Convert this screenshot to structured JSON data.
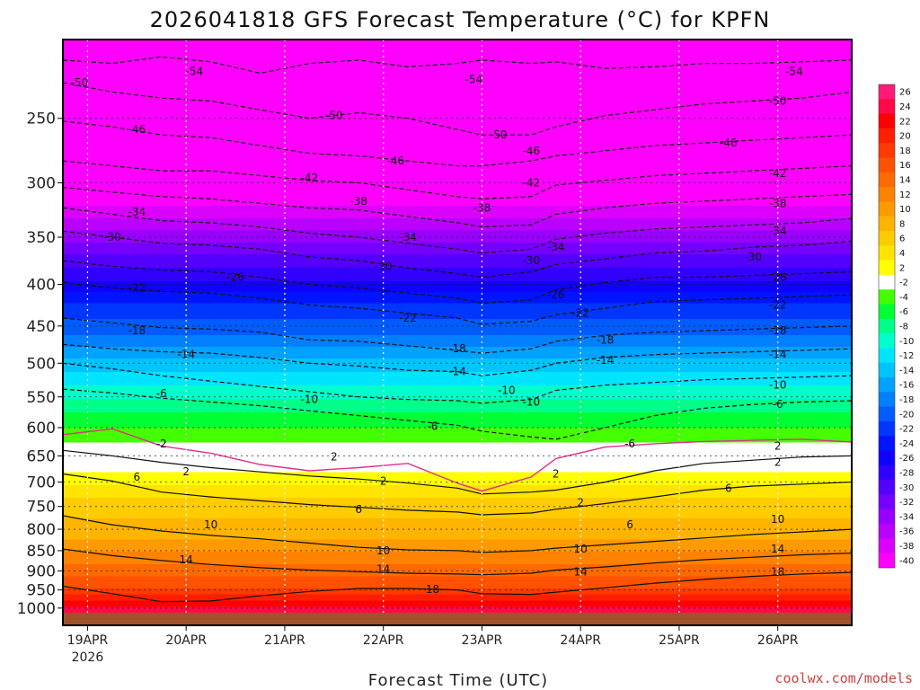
{
  "chart_data": {
    "type": "heatmap",
    "title": "2026041818 GFS Forecast Temperature (°C) for KPFN",
    "xlabel": "Forecast Time (UTC)",
    "ylabel": "",
    "credit": "coolwx.com/models",
    "y_axis": {
      "unit": "hPa",
      "scale": "log",
      "inverted": true,
      "ylim": [
        1050,
        200
      ],
      "ticks": [
        250,
        300,
        350,
        400,
        450,
        500,
        550,
        600,
        650,
        700,
        750,
        800,
        850,
        900,
        950,
        1000
      ]
    },
    "x_axis": {
      "xlim": [
        "2026-04-18T18",
        "2026-04-26T18"
      ],
      "ticks": [
        {
          "t": "2026-04-19T00",
          "label": "19APR",
          "sub": "2026"
        },
        {
          "t": "2026-04-20T00",
          "label": "20APR",
          "sub": ""
        },
        {
          "t": "2026-04-21T00",
          "label": "21APR",
          "sub": ""
        },
        {
          "t": "2026-04-22T00",
          "label": "22APR",
          "sub": ""
        },
        {
          "t": "2026-04-23T00",
          "label": "23APR",
          "sub": ""
        },
        {
          "t": "2026-04-24T00",
          "label": "24APR",
          "sub": ""
        },
        {
          "t": "2026-04-25T00",
          "label": "25APR",
          "sub": ""
        },
        {
          "t": "2026-04-26T00",
          "label": "26APR",
          "sub": ""
        }
      ]
    },
    "grid": true,
    "colorbar": {
      "labels": [
        26,
        24,
        22,
        20,
        18,
        16,
        14,
        12,
        10,
        8,
        6,
        4,
        2,
        -2,
        -4,
        -6,
        -8,
        -10,
        -12,
        -14,
        -16,
        -18,
        -20,
        -22,
        -24,
        -26,
        -28,
        -30,
        -32,
        -34,
        -36,
        -38,
        -40
      ],
      "colors": [
        "#ff1a7a",
        "#ff0a46",
        "#ff0000",
        "#ff1f00",
        "#ff3a00",
        "#ff5200",
        "#ff6a00",
        "#ff8200",
        "#ff9a00",
        "#ffb400",
        "#ffcc00",
        "#ffe400",
        "#ffff00",
        "#ffffff",
        "#44ff00",
        "#00ff33",
        "#00ff88",
        "#00ffcc",
        "#00e5ff",
        "#00c4ff",
        "#00a2ff",
        "#0080ff",
        "#005cff",
        "#0036ff",
        "#0014ff",
        "#1000ff",
        "#3200ff",
        "#5400ff",
        "#7600ff",
        "#9800ff",
        "#ba00ff",
        "#dc00ff",
        "#ff00ff"
      ]
    },
    "ground_color": "#a0522d",
    "isotherm_levels": [
      -54,
      -50,
      -46,
      -42,
      -38,
      -34,
      -30,
      -26,
      -22,
      -18,
      -14,
      -10,
      -6,
      2,
      6,
      10,
      14,
      18
    ],
    "freezing_line_color": "#e0308a",
    "freezing_level_hpa": [
      {
        "t": "2026-04-18T18",
        "p": 612
      },
      {
        "t": "2026-04-19T06",
        "p": 602
      },
      {
        "t": "2026-04-19T18",
        "p": 632
      },
      {
        "t": "2026-04-20T06",
        "p": 645
      },
      {
        "t": "2026-04-20T18",
        "p": 666
      },
      {
        "t": "2026-04-21T06",
        "p": 678
      },
      {
        "t": "2026-04-21T18",
        "p": 672
      },
      {
        "t": "2026-04-22T06",
        "p": 664
      },
      {
        "t": "2026-04-22T18",
        "p": 702
      },
      {
        "t": "2026-04-23T00",
        "p": 718
      },
      {
        "t": "2026-04-23T12",
        "p": 690
      },
      {
        "t": "2026-04-23T18",
        "p": 655
      },
      {
        "t": "2026-04-24T06",
        "p": 634
      },
      {
        "t": "2026-04-24T18",
        "p": 628
      },
      {
        "t": "2026-04-25T06",
        "p": 624
      },
      {
        "t": "2026-04-25T18",
        "p": 622
      },
      {
        "t": "2026-04-26T06",
        "p": 620
      },
      {
        "t": "2026-04-26T18",
        "p": 625
      }
    ],
    "isotherm_labels": [
      {
        "t": "2026-04-18T22",
        "p": 226,
        "text": "-50"
      },
      {
        "t": "2026-04-20T02",
        "p": 219,
        "text": "-54"
      },
      {
        "t": "2026-04-22T22",
        "p": 224,
        "text": "-54"
      },
      {
        "t": "2026-04-26T04",
        "p": 219,
        "text": "-54"
      },
      {
        "t": "2026-04-21T12",
        "p": 248,
        "text": "-50"
      },
      {
        "t": "2026-04-23T04",
        "p": 262,
        "text": "-50"
      },
      {
        "t": "2026-04-26T00",
        "p": 238,
        "text": "-50"
      },
      {
        "t": "2026-04-19T12",
        "p": 258,
        "text": "-46"
      },
      {
        "t": "2026-04-22T03",
        "p": 282,
        "text": "-46"
      },
      {
        "t": "2026-04-23T12",
        "p": 274,
        "text": "-46"
      },
      {
        "t": "2026-04-25T12",
        "p": 268,
        "text": "-46"
      },
      {
        "t": "2026-04-21T06",
        "p": 296,
        "text": "-42"
      },
      {
        "t": "2026-04-23T12",
        "p": 300,
        "text": "-42"
      },
      {
        "t": "2026-04-26T00",
        "p": 292,
        "text": "-42"
      },
      {
        "t": "2026-04-21T18",
        "p": 316,
        "text": "-38"
      },
      {
        "t": "2026-04-23T00",
        "p": 322,
        "text": "-38"
      },
      {
        "t": "2026-04-26T00",
        "p": 318,
        "text": "-38"
      },
      {
        "t": "2026-04-19T12",
        "p": 326,
        "text": "-34"
      },
      {
        "t": "2026-04-22T06",
        "p": 350,
        "text": "-34"
      },
      {
        "t": "2026-04-23T18",
        "p": 360,
        "text": "-34"
      },
      {
        "t": "2026-04-26T00",
        "p": 344,
        "text": "-34"
      },
      {
        "t": "2026-04-19T06",
        "p": 350,
        "text": "-30"
      },
      {
        "t": "2026-04-22T00",
        "p": 380,
        "text": "-30"
      },
      {
        "t": "2026-04-23T12",
        "p": 374,
        "text": "-30"
      },
      {
        "t": "2026-04-25T18",
        "p": 370,
        "text": "-30"
      },
      {
        "t": "2026-04-20T12",
        "p": 392,
        "text": "-26"
      },
      {
        "t": "2026-04-23T18",
        "p": 412,
        "text": "-26"
      },
      {
        "t": "2026-04-26T00",
        "p": 392,
        "text": "-26"
      },
      {
        "t": "2026-04-19T12",
        "p": 404,
        "text": "-22"
      },
      {
        "t": "2026-04-22T06",
        "p": 440,
        "text": "-22"
      },
      {
        "t": "2026-04-24T00",
        "p": 434,
        "text": "-22"
      },
      {
        "t": "2026-04-26T00",
        "p": 424,
        "text": "-22"
      },
      {
        "t": "2026-04-19T12",
        "p": 456,
        "text": "-18"
      },
      {
        "t": "2026-04-22T18",
        "p": 480,
        "text": "-18"
      },
      {
        "t": "2026-04-24T06",
        "p": 468,
        "text": "-18"
      },
      {
        "t": "2026-04-26T00",
        "p": 456,
        "text": "-18"
      },
      {
        "t": "2026-04-20T00",
        "p": 488,
        "text": "-14"
      },
      {
        "t": "2026-04-22T18",
        "p": 512,
        "text": "-14"
      },
      {
        "t": "2026-04-24T06",
        "p": 496,
        "text": "-14"
      },
      {
        "t": "2026-04-26T00",
        "p": 488,
        "text": "-14"
      },
      {
        "t": "2026-04-19T18",
        "p": 545,
        "text": "-6"
      },
      {
        "t": "2026-04-21T06",
        "p": 554,
        "text": "-10"
      },
      {
        "t": "2026-04-23T06",
        "p": 540,
        "text": "-10"
      },
      {
        "t": "2026-04-23T12",
        "p": 558,
        "text": "-10"
      },
      {
        "t": "2026-04-26T00",
        "p": 532,
        "text": "-10"
      },
      {
        "t": "2026-04-22T12",
        "p": 598,
        "text": "-6"
      },
      {
        "t": "2026-04-24T12",
        "p": 628,
        "text": "-6"
      },
      {
        "t": "2026-04-26T00",
        "p": 562,
        "text": "-6"
      },
      {
        "t": "2026-04-19T18",
        "p": 628,
        "text": "-2"
      },
      {
        "t": "2026-04-21T12",
        "p": 652,
        "text": "2"
      },
      {
        "t": "2026-04-20T00",
        "p": 680,
        "text": "2"
      },
      {
        "t": "2026-04-22T00",
        "p": 698,
        "text": "2"
      },
      {
        "t": "2026-04-23T18",
        "p": 684,
        "text": "2"
      },
      {
        "t": "2026-04-24T00",
        "p": 742,
        "text": "2"
      },
      {
        "t": "2026-04-26T00",
        "p": 632,
        "text": "2"
      },
      {
        "t": "2026-04-26T00",
        "p": 662,
        "text": "2"
      },
      {
        "t": "2026-04-19T12",
        "p": 690,
        "text": "6"
      },
      {
        "t": "2026-04-21T18",
        "p": 756,
        "text": "6"
      },
      {
        "t": "2026-04-25T12",
        "p": 712,
        "text": "6"
      },
      {
        "t": "2026-04-24T12",
        "p": 790,
        "text": "6"
      },
      {
        "t": "2026-04-20T06",
        "p": 790,
        "text": "10"
      },
      {
        "t": "2026-04-22T00",
        "p": 850,
        "text": "10"
      },
      {
        "t": "2026-04-24T00",
        "p": 846,
        "text": "10"
      },
      {
        "t": "2026-04-26T00",
        "p": 778,
        "text": "10"
      },
      {
        "t": "2026-04-20T00",
        "p": 872,
        "text": "14"
      },
      {
        "t": "2026-04-22T00",
        "p": 896,
        "text": "14"
      },
      {
        "t": "2026-04-24T00",
        "p": 902,
        "text": "14"
      },
      {
        "t": "2026-04-26T00",
        "p": 846,
        "text": "14"
      },
      {
        "t": "2026-04-22T12",
        "p": 948,
        "text": "18"
      },
      {
        "t": "2026-04-26T00",
        "p": 902,
        "text": "18"
      }
    ],
    "contour_keys": [
      {
        "level": -54,
        "p": [
          212,
          214,
          210,
          213,
          220,
          214,
          212,
          216,
          214,
          212,
          214,
          213,
          217,
          216,
          214,
          214,
          213,
          212
        ]
      },
      {
        "level": -50,
        "p": [
          226,
          232,
          236,
          238,
          244,
          250,
          246,
          250,
          258,
          262,
          262,
          256,
          248,
          244,
          240,
          238,
          236,
          232
        ]
      },
      {
        "level": -46,
        "p": [
          252,
          256,
          262,
          264,
          270,
          276,
          278,
          282,
          286,
          286,
          282,
          278,
          274,
          270,
          268,
          266,
          264,
          262
        ]
      },
      {
        "level": -42,
        "p": [
          282,
          286,
          290,
          290,
          294,
          298,
          300,
          306,
          312,
          314,
          312,
          302,
          298,
          294,
          292,
          290,
          288,
          286
        ]
      },
      {
        "level": -38,
        "p": [
          304,
          308,
          312,
          314,
          318,
          322,
          324,
          330,
          336,
          340,
          338,
          328,
          322,
          318,
          316,
          314,
          312,
          310
        ]
      },
      {
        "level": -34,
        "p": [
          322,
          328,
          334,
          336,
          340,
          346,
          350,
          356,
          362,
          366,
          362,
          352,
          346,
          342,
          340,
          338,
          336,
          332
        ]
      },
      {
        "level": -30,
        "p": [
          344,
          350,
          356,
          358,
          362,
          370,
          374,
          382,
          388,
          392,
          386,
          378,
          372,
          366,
          364,
          360,
          358,
          354
        ]
      },
      {
        "level": -26,
        "p": [
          374,
          380,
          384,
          386,
          392,
          400,
          404,
          410,
          416,
          422,
          418,
          406,
          398,
          392,
          392,
          390,
          388,
          386
        ]
      },
      {
        "level": -22,
        "p": [
          398,
          404,
          408,
          410,
          416,
          424,
          428,
          434,
          440,
          448,
          444,
          436,
          428,
          420,
          418,
          416,
          414,
          412
        ]
      },
      {
        "level": -18,
        "p": [
          440,
          446,
          452,
          454,
          458,
          468,
          470,
          476,
          482,
          486,
          480,
          470,
          462,
          458,
          456,
          454,
          452,
          450
        ]
      },
      {
        "level": -14,
        "p": [
          474,
          480,
          484,
          486,
          492,
          500,
          504,
          510,
          512,
          518,
          510,
          500,
          492,
          488,
          486,
          484,
          482,
          480
        ]
      },
      {
        "level": -10,
        "p": [
          500,
          508,
          518,
          526,
          534,
          542,
          550,
          554,
          556,
          560,
          554,
          540,
          532,
          528,
          524,
          522,
          520,
          518
        ]
      },
      {
        "level": -6,
        "p": [
          538,
          544,
          552,
          558,
          564,
          572,
          580,
          588,
          596,
          606,
          616,
          620,
          600,
          580,
          568,
          562,
          558,
          556
        ]
      },
      {
        "level": 2,
        "p": [
          640,
          650,
          662,
          672,
          680,
          688,
          694,
          702,
          712,
          724,
          720,
          716,
          700,
          678,
          664,
          658,
          652,
          650
        ]
      },
      {
        "level": 6,
        "p": [
          684,
          698,
          720,
          730,
          738,
          746,
          752,
          758,
          762,
          768,
          764,
          756,
          744,
          730,
          716,
          708,
          704,
          700
        ]
      },
      {
        "level": 10,
        "p": [
          770,
          790,
          804,
          814,
          822,
          832,
          842,
          848,
          850,
          854,
          850,
          844,
          836,
          828,
          820,
          812,
          806,
          800
        ]
      },
      {
        "level": 14,
        "p": [
          846,
          862,
          874,
          884,
          892,
          898,
          902,
          906,
          908,
          910,
          906,
          898,
          890,
          880,
          872,
          866,
          860,
          856
        ]
      },
      {
        "level": 18,
        "p": [
          940,
          960,
          982,
          980,
          966,
          954,
          946,
          946,
          950,
          960,
          962,
          956,
          944,
          932,
          922,
          914,
          908,
          904
        ]
      }
    ],
    "contour_times": [
      "2026-04-18T18",
      "2026-04-19T06",
      "2026-04-19T18",
      "2026-04-20T06",
      "2026-04-20T18",
      "2026-04-21T06",
      "2026-04-21T18",
      "2026-04-22T06",
      "2026-04-22T18",
      "2026-04-23T00",
      "2026-04-23T12",
      "2026-04-23T18",
      "2026-04-24T06",
      "2026-04-24T18",
      "2026-04-25T06",
      "2026-04-25T18",
      "2026-04-26T06",
      "2026-04-26T18"
    ]
  }
}
